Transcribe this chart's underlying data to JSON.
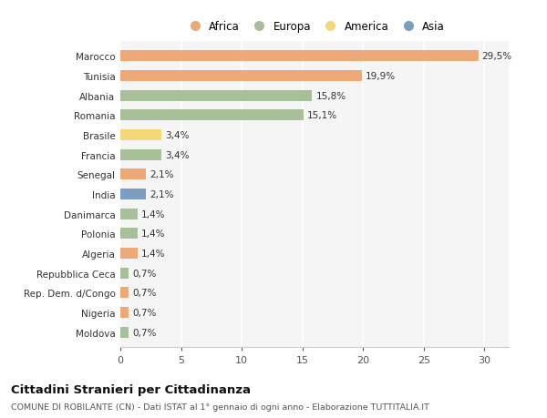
{
  "categories": [
    "Marocco",
    "Tunisia",
    "Albania",
    "Romania",
    "Brasile",
    "Francia",
    "Senegal",
    "India",
    "Danimarca",
    "Polonia",
    "Algeria",
    "Repubblica Ceca",
    "Rep. Dem. d/Congo",
    "Nigeria",
    "Moldova"
  ],
  "values": [
    29.5,
    19.9,
    15.8,
    15.1,
    3.4,
    3.4,
    2.1,
    2.1,
    1.4,
    1.4,
    1.4,
    0.7,
    0.7,
    0.7,
    0.7
  ],
  "labels": [
    "29,5%",
    "19,9%",
    "15,8%",
    "15,1%",
    "3,4%",
    "3,4%",
    "2,1%",
    "2,1%",
    "1,4%",
    "1,4%",
    "1,4%",
    "0,7%",
    "0,7%",
    "0,7%",
    "0,7%"
  ],
  "continent": [
    "Africa",
    "Africa",
    "Europa",
    "Europa",
    "America",
    "Europa",
    "Africa",
    "Asia",
    "Europa",
    "Europa",
    "Africa",
    "Europa",
    "Africa",
    "Africa",
    "Europa"
  ],
  "colors": {
    "Africa": "#EDAA78",
    "Europa": "#A8C09A",
    "America": "#F5D87A",
    "Asia": "#7A9FC0"
  },
  "legend_order": [
    "Africa",
    "Europa",
    "America",
    "Asia"
  ],
  "title1": "Cittadini Stranieri per Cittadinanza",
  "title2": "COMUNE DI ROBILANTE (CN) - Dati ISTAT al 1° gennaio di ogni anno - Elaborazione TUTTITALIA.IT",
  "xlim": [
    0,
    32
  ],
  "xticks": [
    0,
    5,
    10,
    15,
    20,
    25,
    30
  ],
  "bg_color": "#ffffff",
  "plot_bg_color": "#f5f5f5",
  "grid_color": "#ffffff"
}
